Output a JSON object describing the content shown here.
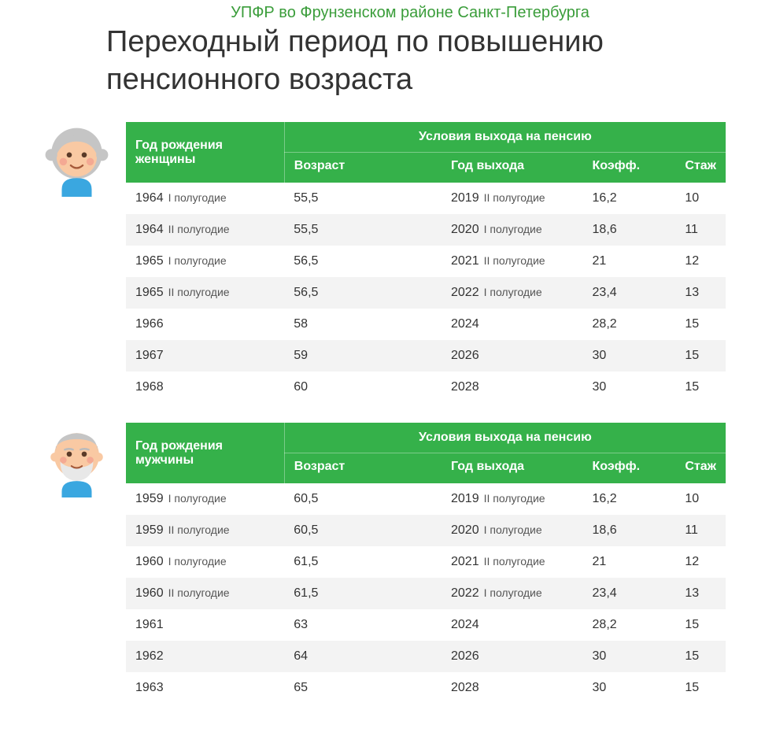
{
  "org_header": "УПФР во Фрунзенском районе Санкт-Петербурга",
  "org_header_color": "#3a9d3a",
  "title": "Переходный период по повышению пенсионного возраста",
  "header_bg": "#35b14a",
  "row_alt_bg": "#f3f3f3",
  "text_color": "#333333",
  "labels": {
    "conditions": "Условия выхода на пенсию",
    "age": "Возраст",
    "exit_year": "Год выхода",
    "coef": "Коэфф.",
    "stage": "Стаж"
  },
  "women": {
    "birth_label": "Год рождения женщины",
    "avatar": {
      "skin": "#f9c9a3",
      "hair": "#c5c5c5",
      "shirt": "#3aa7e0",
      "cheek": "#f29b8c",
      "bg": "#ffffff"
    },
    "rows": [
      {
        "birth_year": "1964",
        "birth_half": "I полугодие",
        "age": "55,5",
        "exit_year": "2019",
        "exit_half": "II полугодие",
        "coef": "16,2",
        "stage": "10"
      },
      {
        "birth_year": "1964",
        "birth_half": "II полугодие",
        "age": "55,5",
        "exit_year": "2020",
        "exit_half": "I полугодие",
        "coef": "18,6",
        "stage": "11"
      },
      {
        "birth_year": "1965",
        "birth_half": "I полугодие",
        "age": "56,5",
        "exit_year": "2021",
        "exit_half": "II полугодие",
        "coef": "21",
        "stage": "12"
      },
      {
        "birth_year": "1965",
        "birth_half": "II полугодие",
        "age": "56,5",
        "exit_year": "2022",
        "exit_half": "I полугодие",
        "coef": "23,4",
        "stage": "13"
      },
      {
        "birth_year": "1966",
        "birth_half": "",
        "age": "58",
        "exit_year": "2024",
        "exit_half": "",
        "coef": "28,2",
        "stage": "15"
      },
      {
        "birth_year": "1967",
        "birth_half": "",
        "age": "59",
        "exit_year": "2026",
        "exit_half": "",
        "coef": "30",
        "stage": "15"
      },
      {
        "birth_year": "1968",
        "birth_half": "",
        "age": "60",
        "exit_year": "2028",
        "exit_half": "",
        "coef": "30",
        "stage": "15"
      }
    ]
  },
  "men": {
    "birth_label": "Год рождения мужчины",
    "avatar": {
      "skin": "#f9c9a3",
      "hair": "#c5c5c5",
      "beard": "#e8e8e8",
      "shirt": "#3aa7e0",
      "cheek": "#f29b8c",
      "bg": "#ffffff"
    },
    "rows": [
      {
        "birth_year": "1959",
        "birth_half": "I полугодие",
        "age": "60,5",
        "exit_year": "2019",
        "exit_half": "II полугодие",
        "coef": "16,2",
        "stage": "10"
      },
      {
        "birth_year": "1959",
        "birth_half": "II полугодие",
        "age": "60,5",
        "exit_year": "2020",
        "exit_half": "I полугодие",
        "coef": "18,6",
        "stage": "11"
      },
      {
        "birth_year": "1960",
        "birth_half": "I полугодие",
        "age": "61,5",
        "exit_year": "2021",
        "exit_half": "II полугодие",
        "coef": "21",
        "stage": "12"
      },
      {
        "birth_year": "1960",
        "birth_half": "II полугодие",
        "age": "61,5",
        "exit_year": "2022",
        "exit_half": "I полугодие",
        "coef": "23,4",
        "stage": "13"
      },
      {
        "birth_year": "1961",
        "birth_half": "",
        "age": "63",
        "exit_year": "2024",
        "exit_half": "",
        "coef": "28,2",
        "stage": "15"
      },
      {
        "birth_year": "1962",
        "birth_half": "",
        "age": "64",
        "exit_year": "2026",
        "exit_half": "",
        "coef": "30",
        "stage": "15"
      },
      {
        "birth_year": "1963",
        "birth_half": "",
        "age": "65",
        "exit_year": "2028",
        "exit_half": "",
        "coef": "30",
        "stage": "15"
      }
    ]
  }
}
